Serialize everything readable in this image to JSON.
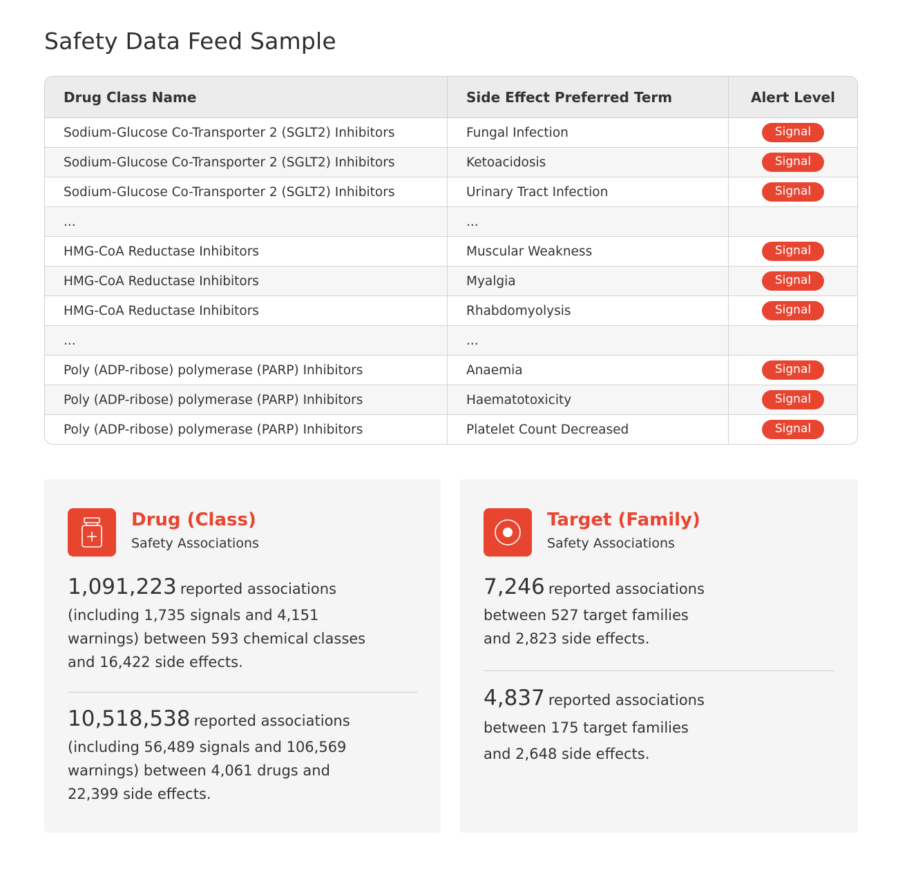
{
  "title": "Safety Data Feed Sample",
  "table": {
    "columns": [
      "Drug Class Name",
      "Side Effect Preferred Term",
      "Alert Level"
    ],
    "rows": [
      [
        "Sodium-Glucose Co-Transporter 2 (SGLT2) Inhibitors",
        "Fungal Infection",
        "Signal"
      ],
      [
        "Sodium-Glucose Co-Transporter 2 (SGLT2) Inhibitors",
        "Ketoacidosis",
        "Signal"
      ],
      [
        "Sodium-Glucose Co-Transporter 2 (SGLT2) Inhibitors",
        "Urinary Tract Infection",
        "Signal"
      ],
      [
        "...",
        "...",
        ""
      ],
      [
        "HMG-CoA Reductase Inhibitors",
        "Muscular Weakness",
        "Signal"
      ],
      [
        "HMG-CoA Reductase Inhibitors",
        "Myalgia",
        "Signal"
      ],
      [
        "HMG-CoA Reductase Inhibitors",
        "Rhabdomyolysis",
        "Signal"
      ],
      [
        "...",
        "...",
        ""
      ],
      [
        "Poly (ADP-ribose) polymerase (PARP) Inhibitors",
        "Anaemia",
        "Signal"
      ],
      [
        "Poly (ADP-ribose) polymerase (PARP) Inhibitors",
        "Haematotoxicity",
        "Signal"
      ],
      [
        "Poly (ADP-ribose) polymerase (PARP) Inhibitors",
        "Platelet Count Decreased",
        "Signal"
      ]
    ]
  },
  "cards": [
    {
      "icon": "medicine-bottle-icon",
      "title": "Drug (Class)",
      "subtitle": "Safety Associations",
      "stats": [
        {
          "number": "1,091,223",
          "label": "reported associations",
          "desc": "(including 1,735 signals and 4,151 warnings) between 593 chemical classes and 16,422 side effects."
        },
        {
          "number": "10,518,538",
          "label": "reported associations",
          "desc": "(including 56,489 signals and 106,569 warnings) between 4,061 drugs and 22,399 side effects."
        }
      ]
    },
    {
      "icon": "target-icon",
      "title": "Target (Family)",
      "subtitle": "Safety Associations",
      "stats": [
        {
          "number": "7,246",
          "label": "reported associations",
          "desc": "between 527 target families and 2,823 side effects."
        },
        {
          "number": "4,837",
          "label": "reported associations",
          "desc": "between 175 target families and 2,648 side effects."
        }
      ]
    }
  ],
  "colors": {
    "accent": "#e84531",
    "card_bg": "#f5f5f5",
    "header_bg": "#ececed"
  }
}
